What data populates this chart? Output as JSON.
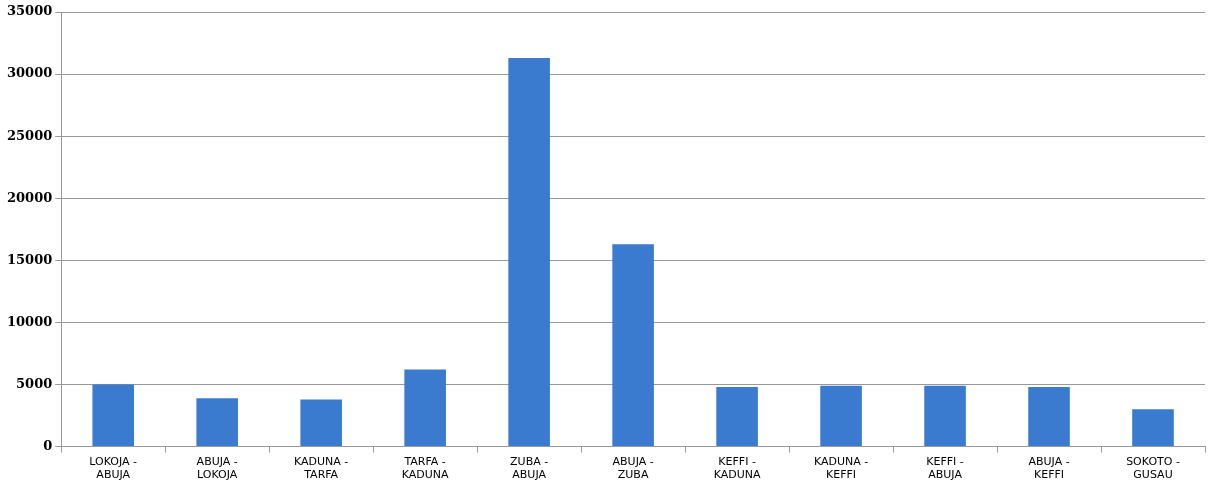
{
  "chart_data": {
    "type": "bar",
    "categories": [
      "LOKOJA - ABUJA",
      "ABUJA - LOKOJA",
      "KADUNA - TARFA",
      "TARFA - KADUNA",
      "ZUBA - ABUJA",
      "ABUJA - ZUBA",
      "KEFFI - KADUNA",
      "KADUNA - KEFFI",
      "KEFFI - ABUJA",
      "ABUJA - KEFFI",
      "SOKOTO - GUSAU"
    ],
    "values": [
      5000,
      3900,
      3800,
      6200,
      31300,
      16300,
      4800,
      4900,
      4900,
      4800,
      3000
    ],
    "color": "#3b7bcf",
    "ylim": [
      0,
      35000
    ],
    "yticks": [
      0,
      5000,
      10000,
      15000,
      20000,
      25000,
      30000,
      35000
    ],
    "grid": "y",
    "legend": false
  }
}
